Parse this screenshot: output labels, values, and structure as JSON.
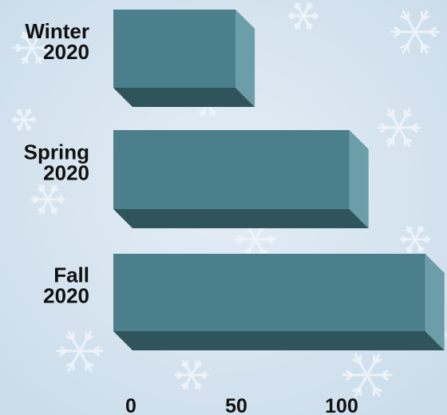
{
  "chart_data": {
    "type": "bar",
    "orientation": "horizontal",
    "style": "3d",
    "categories": [
      [
        "Winter",
        "2020"
      ],
      [
        "Spring",
        "2020"
      ],
      [
        "Fall",
        "2020"
      ]
    ],
    "values": [
      58,
      112,
      148
    ],
    "xlim": [
      0,
      150
    ],
    "x_ticks": [
      0,
      50,
      100
    ],
    "title": "",
    "xlabel": "",
    "ylabel": "",
    "grid": false,
    "legend": "none",
    "colors": {
      "front": "#4a7f8b",
      "side": "#6b9ea8",
      "bottom": "#2f545c",
      "background": "#dbe7f1",
      "snowflake": "#f3f8fc"
    }
  }
}
